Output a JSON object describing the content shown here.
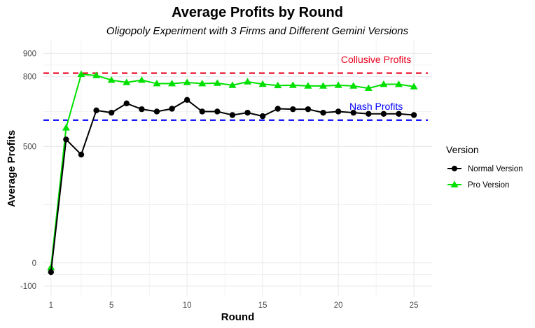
{
  "chart_data": {
    "type": "line",
    "title": "Average Profits by Round",
    "subtitle": "Oligopoly Experiment with 3 Firms and Different Gemini Versions",
    "xlabel": "Round",
    "ylabel": "Average Profits",
    "xlim": [
      0.5,
      26.2
    ],
    "ylim": [
      -145,
      955
    ],
    "x_ticks": [
      1,
      5,
      10,
      15,
      20,
      25
    ],
    "y_ticks": [
      -100,
      0,
      500,
      800,
      900
    ],
    "grid": true,
    "legend": {
      "title": "Version",
      "placement": "right"
    },
    "x": [
      1,
      2,
      3,
      4,
      5,
      6,
      7,
      8,
      9,
      10,
      11,
      12,
      13,
      14,
      15,
      16,
      17,
      18,
      19,
      20,
      21,
      22,
      23,
      24,
      25
    ],
    "series": [
      {
        "name": "Normal Version",
        "color": "#000000",
        "marker": "circle",
        "values": [
          -40,
          530,
          465,
          655,
          645,
          685,
          660,
          650,
          662,
          700,
          650,
          650,
          635,
          645,
          630,
          662,
          660,
          660,
          645,
          650,
          645,
          640,
          640,
          640,
          635
        ]
      },
      {
        "name": "Pro Version",
        "color": "#00e000",
        "marker": "triangle",
        "values": [
          -20,
          580,
          810,
          805,
          785,
          775,
          785,
          770,
          770,
          775,
          770,
          772,
          763,
          778,
          768,
          762,
          763,
          760,
          760,
          763,
          760,
          750,
          767,
          767,
          757
        ]
      }
    ],
    "reference_lines": [
      {
        "label": "Collusive Profits",
        "value": 815,
        "color": "#e8001c",
        "style": "dashed"
      },
      {
        "label": "Nash Profits",
        "value": 613,
        "color": "#0000ff",
        "style": "dashed"
      }
    ]
  }
}
